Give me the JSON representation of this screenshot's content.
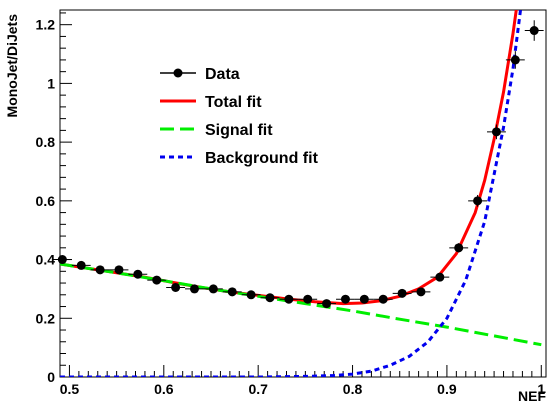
{
  "chart_data": {
    "type": "line",
    "xlabel": "NEF",
    "ylabel": "MonoJet/DiJets",
    "xlim": [
      0.49,
      1.005
    ],
    "ylim": [
      0,
      1.25
    ],
    "x_ticks": [
      0.5,
      0.6,
      0.7,
      0.8,
      0.9,
      1
    ],
    "y_ticks": [
      0,
      0.2,
      0.4,
      0.6,
      0.8,
      1,
      1.2
    ],
    "x_tick_labels": [
      "0.5",
      "0.6",
      "0.7",
      "0.8",
      "0.9",
      "1"
    ],
    "y_tick_labels": [
      "0",
      "0.2",
      "0.4",
      "0.6",
      "0.8",
      "1",
      "1.2"
    ],
    "grid": false,
    "legend_placement": "top-left",
    "series": [
      {
        "name": "Data",
        "style": "markers",
        "color": "#000000",
        "x": [
          0.4925,
          0.5125,
          0.5325,
          0.5525,
          0.5725,
          0.5925,
          0.6125,
          0.6325,
          0.6525,
          0.6725,
          0.6925,
          0.7125,
          0.7325,
          0.7525,
          0.7725,
          0.7925,
          0.8125,
          0.8325,
          0.8525,
          0.8725,
          0.8925,
          0.9125,
          0.9325,
          0.9525,
          0.9725,
          0.9925
        ],
        "values": [
          0.4,
          0.38,
          0.365,
          0.365,
          0.35,
          0.33,
          0.305,
          0.3,
          0.3,
          0.29,
          0.28,
          0.27,
          0.265,
          0.265,
          0.25,
          0.265,
          0.265,
          0.265,
          0.285,
          0.29,
          0.34,
          0.44,
          0.6,
          0.835,
          1.08,
          1.18
        ],
        "xerr": 0.01,
        "yerr": [
          0.012,
          0.011,
          0.011,
          0.011,
          0.011,
          0.011,
          0.011,
          0.011,
          0.011,
          0.011,
          0.011,
          0.011,
          0.011,
          0.011,
          0.011,
          0.011,
          0.011,
          0.011,
          0.012,
          0.012,
          0.014,
          0.016,
          0.02,
          0.025,
          0.03,
          0.035
        ]
      },
      {
        "name": "Total fit",
        "style": "solid",
        "color": "#ff0000",
        "x": [
          0.49,
          0.52,
          0.55,
          0.58,
          0.61,
          0.64,
          0.67,
          0.7,
          0.73,
          0.76,
          0.79,
          0.81,
          0.83,
          0.85,
          0.87,
          0.89,
          0.91,
          0.93,
          0.94,
          0.95,
          0.96,
          0.97,
          0.98
        ],
        "values": [
          0.385,
          0.37,
          0.355,
          0.34,
          0.322,
          0.305,
          0.29,
          0.278,
          0.266,
          0.256,
          0.25,
          0.252,
          0.26,
          0.275,
          0.3,
          0.34,
          0.42,
          0.56,
          0.67,
          0.81,
          0.97,
          1.17,
          1.4
        ]
      },
      {
        "name": "Signal fit",
        "style": "dashed",
        "color": "#00ee00",
        "x": [
          0.49,
          0.55,
          0.6,
          0.65,
          0.7,
          0.75,
          0.8,
          0.85,
          0.9,
          0.95,
          1.0
        ],
        "values": [
          0.385,
          0.355,
          0.328,
          0.3,
          0.275,
          0.25,
          0.225,
          0.197,
          0.17,
          0.14,
          0.11
        ]
      },
      {
        "name": "Background fit",
        "style": "dotted",
        "color": "#0000ee",
        "x": [
          0.49,
          0.7,
          0.75,
          0.78,
          0.8,
          0.82,
          0.84,
          0.86,
          0.88,
          0.9,
          0.92,
          0.94,
          0.96,
          0.97,
          0.98
        ],
        "values": [
          0.0,
          0.0,
          0.002,
          0.005,
          0.01,
          0.02,
          0.04,
          0.07,
          0.12,
          0.2,
          0.33,
          0.53,
          0.85,
          1.05,
          1.3
        ]
      }
    ]
  }
}
